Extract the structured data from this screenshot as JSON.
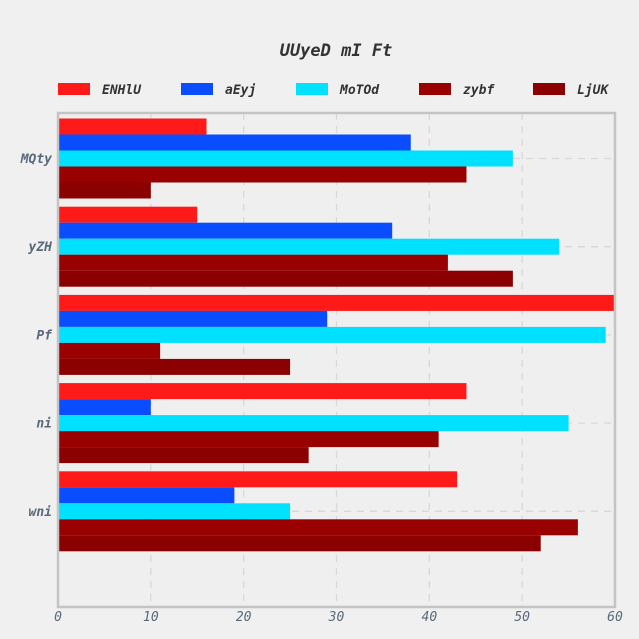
{
  "chart_data": {
    "type": "bar",
    "orientation": "horizontal",
    "title": "UUyeD mI Ft",
    "xlabel": "",
    "ylabel": "",
    "categories": [
      "MQty",
      "yZH",
      "Pf",
      "ni",
      "wni"
    ],
    "series": [
      {
        "name": "ENHlU",
        "color": "#ff1a1a",
        "values": [
          16,
          15,
          60,
          44,
          43
        ]
      },
      {
        "name": "aEyj",
        "color": "#0a4dff",
        "values": [
          38,
          36,
          29,
          10,
          19
        ]
      },
      {
        "name": "MoTOd",
        "color": "#00e1ff",
        "values": [
          49,
          54,
          59,
          55,
          25
        ]
      },
      {
        "name": "zybf",
        "color": "#990000",
        "values": [
          44,
          42,
          11,
          41,
          56
        ]
      },
      {
        "name": "LjUK",
        "color": "#8b0000",
        "values": [
          10,
          49,
          25,
          27,
          52
        ]
      }
    ],
    "xlim": [
      0,
      60
    ],
    "xticks": [
      0,
      10,
      20,
      30,
      40,
      50,
      60
    ],
    "grid": true,
    "legend_position": "top"
  }
}
